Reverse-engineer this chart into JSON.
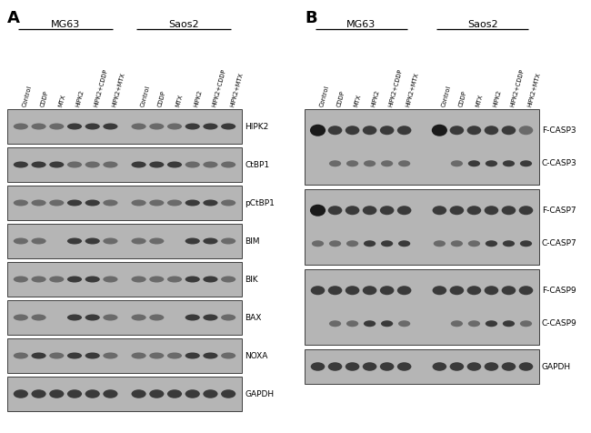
{
  "fig_w": 6.5,
  "fig_h": 4.76,
  "dpi": 100,
  "panel_A_label": "A",
  "panel_B_label": "B",
  "cell_line_labels": [
    "MG63",
    "Saos2"
  ],
  "treatment_labels": [
    "Control",
    "CDDP",
    "MTX",
    "HIPK2",
    "HIPK2+CDDP",
    "HIPK2+MTX"
  ],
  "blot_labels_A": [
    "HIPK2",
    "CtBP1",
    "pCtBP1",
    "BIM",
    "BIK",
    "BAX",
    "NOXA",
    "GAPDH"
  ],
  "blot_labels_B_pairs": [
    [
      "F-CASP3",
      "C-CASP3"
    ],
    [
      "F-CASP7",
      "C-CASP7"
    ],
    [
      "F-CASP9",
      "C-CASP9"
    ]
  ],
  "gapdh_label": "GAPDH",
  "bg_blot": "#b5b5b5",
  "bg_blot_dark": "#a8a8a8",
  "band_dark": "#1a1a1a",
  "band_medium": "#3a3a3a",
  "band_light": "#6a6a6a",
  "band_absent": null,
  "bands_A": {
    "HIPK2": [
      1,
      1,
      1,
      2,
      2,
      2,
      1,
      1,
      1,
      2,
      2,
      2
    ],
    "CtBP1": [
      2,
      2,
      2,
      1,
      1,
      1,
      2,
      2,
      2,
      1,
      1,
      1
    ],
    "pCtBP1": [
      1,
      1,
      1,
      2,
      2,
      1,
      1,
      1,
      1,
      2,
      2,
      1
    ],
    "BIM": [
      1,
      1,
      0,
      2,
      2,
      1,
      1,
      1,
      0,
      2,
      2,
      1
    ],
    "BIK": [
      1,
      1,
      1,
      2,
      2,
      1,
      1,
      1,
      1,
      2,
      2,
      1
    ],
    "BAX": [
      1,
      1,
      0,
      2,
      2,
      1,
      1,
      1,
      0,
      2,
      2,
      1
    ],
    "NOXA": [
      1,
      2,
      1,
      2,
      2,
      1,
      1,
      1,
      1,
      2,
      2,
      1
    ],
    "GAPDH": [
      2,
      2,
      2,
      2,
      2,
      2,
      2,
      2,
      2,
      2,
      2,
      2
    ]
  },
  "bands_B": {
    "F-CASP3": [
      3,
      2,
      2,
      2,
      2,
      2,
      3,
      2,
      2,
      2,
      2,
      1
    ],
    "C-CASP3": [
      0,
      1,
      1,
      1,
      1,
      1,
      0,
      1,
      2,
      2,
      2,
      2
    ],
    "F-CASP7": [
      3,
      2,
      2,
      2,
      2,
      2,
      2,
      2,
      2,
      2,
      2,
      2
    ],
    "C-CASP7": [
      1,
      1,
      1,
      2,
      2,
      2,
      1,
      1,
      1,
      2,
      2,
      2
    ],
    "F-CASP9": [
      2,
      2,
      2,
      2,
      2,
      2,
      2,
      2,
      2,
      2,
      2,
      2
    ],
    "C-CASP9": [
      0,
      1,
      1,
      2,
      2,
      1,
      0,
      1,
      1,
      2,
      2,
      1
    ],
    "GAPDH_B": [
      2,
      2,
      2,
      2,
      2,
      2,
      2,
      2,
      2,
      2,
      2,
      2
    ]
  }
}
